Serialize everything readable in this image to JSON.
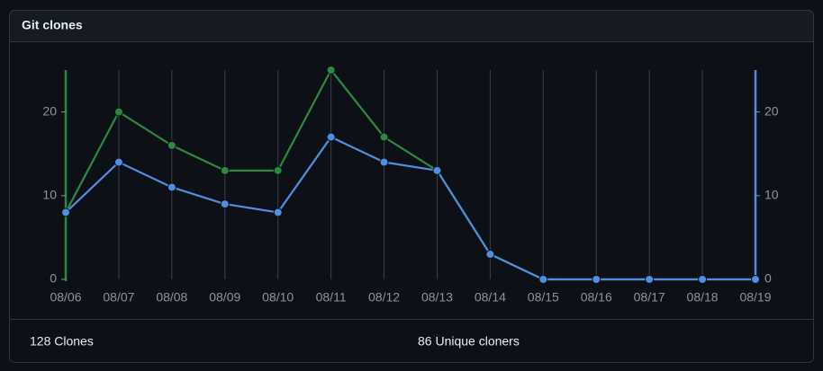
{
  "header": {
    "title": "Git clones"
  },
  "chart_data": {
    "type": "line",
    "categories": [
      "08/06",
      "08/07",
      "08/08",
      "08/09",
      "08/10",
      "08/11",
      "08/12",
      "08/13",
      "08/14",
      "08/15",
      "08/16",
      "08/17",
      "08/18",
      "08/19"
    ],
    "series": [
      {
        "color": "#2b8a3e",
        "values": [
          8,
          20,
          16,
          13,
          13,
          25,
          17,
          13,
          3,
          0,
          0,
          0,
          0,
          0
        ]
      },
      {
        "color": "#4f8fe0",
        "axis": "y2",
        "values": [
          8,
          14,
          11,
          9,
          8,
          17,
          14,
          13,
          3,
          0,
          0,
          0,
          0,
          0
        ]
      }
    ],
    "ylim": [
      0,
      25
    ],
    "yticks": [
      0,
      10,
      20
    ],
    "y2lim": [
      0,
      25
    ],
    "y2ticks": [
      0,
      10,
      20
    ]
  },
  "footer": {
    "items": [
      "128 Clones",
      "86 Unique cloners"
    ]
  }
}
